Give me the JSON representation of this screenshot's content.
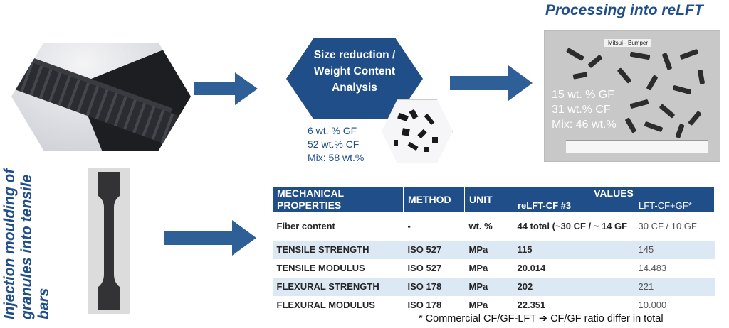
{
  "colors": {
    "primary_blue": "#1f4e88",
    "table_alt_row": "#dce8f4"
  },
  "step_size_reduction": {
    "title": "Size reduction / Weight Content Analysis"
  },
  "step_size_reduction_values": [
    "6 wt. % GF",
    "52 wt.% CF",
    "Mix: 58 wt.%"
  ],
  "step_processing": {
    "title": "Processing into reLFT",
    "photo_label": "Mitsui - Bumper",
    "values": [
      "15 wt. % GF",
      "31 wt.% CF",
      "Mix: 46 wt.%"
    ]
  },
  "step_injection": {
    "title": "Injection moulding of granules into tensile bars"
  },
  "table": {
    "headers": {
      "property": "MECHANICAL PROPERTIES",
      "method": "METHOD",
      "unit": "UNIT",
      "values": "VALUES",
      "col_a": "reLFT-CF #3",
      "col_b": "LFT-CF+GF*"
    },
    "rows": [
      {
        "property": "Fiber content",
        "method": "-",
        "unit": "wt. %",
        "a": "44 total (~30 CF / ~ 14 GF",
        "b": "30 CF / 10 GF"
      },
      {
        "property": "TENSILE STRENGTH",
        "method": "ISO 527",
        "unit": "MPa",
        "a": "115",
        "b": "145"
      },
      {
        "property": "TENSILE MODULUS",
        "method": "ISO 527",
        "unit": "MPa",
        "a": "20.014",
        "b": "14.483"
      },
      {
        "property": "FLEXURAL STRENGTH",
        "method": "ISO 178",
        "unit": "MPa",
        "a": "202",
        "b": "221"
      },
      {
        "property": "FLEXURAL MODULUS",
        "method": "ISO 178",
        "unit": "MPa",
        "a": "22.351",
        "b": "10.000"
      }
    ]
  },
  "footnote": "* Commercial CF/GF-LFT ➔ CF/GF ratio differ in total"
}
